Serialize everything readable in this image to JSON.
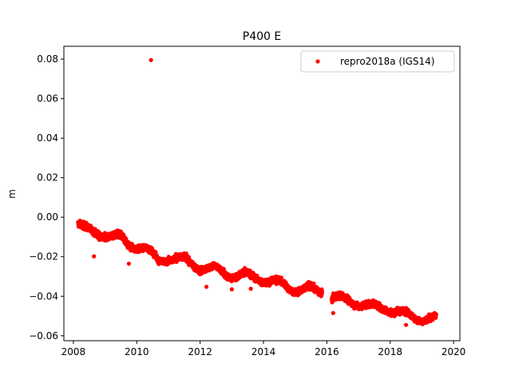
{
  "chart_data": {
    "type": "scatter",
    "title": "P400 E",
    "xlabel": "",
    "ylabel": "m",
    "xlim": [
      2007.7,
      2020.2
    ],
    "ylim": [
      -0.0625,
      0.0865
    ],
    "xticks": [
      2008,
      2010,
      2012,
      2014,
      2016,
      2018,
      2020
    ],
    "yticks": [
      -0.06,
      -0.04,
      -0.02,
      0.0,
      0.02,
      0.04,
      0.06,
      0.08
    ],
    "xtick_labels": [
      "2008",
      "2010",
      "2012",
      "2014",
      "2016",
      "2018",
      "2020"
    ],
    "ytick_labels": [
      "−0.06",
      "−0.04",
      "−0.02",
      "0.00",
      "0.02",
      "0.04",
      "0.06",
      "0.08"
    ],
    "grid": false,
    "legend_position": "top-right",
    "series": [
      {
        "name": "repro2018a (IGS14)",
        "color": "#ff0000",
        "marker": "circle",
        "trend": [
          [
            2008.15,
            -0.003
          ],
          [
            2008.5,
            -0.007
          ],
          [
            2009.0,
            -0.009
          ],
          [
            2009.5,
            -0.01
          ],
          [
            2009.7,
            -0.014
          ],
          [
            2010.0,
            -0.015
          ],
          [
            2010.3,
            -0.016
          ],
          [
            2010.7,
            -0.022
          ],
          [
            2011.0,
            -0.021
          ],
          [
            2011.5,
            -0.021
          ],
          [
            2012.0,
            -0.026
          ],
          [
            2012.5,
            -0.026
          ],
          [
            2013.0,
            -0.03
          ],
          [
            2013.5,
            -0.029
          ],
          [
            2014.0,
            -0.032
          ],
          [
            2014.5,
            -0.033
          ],
          [
            2015.0,
            -0.037
          ],
          [
            2015.5,
            -0.036
          ],
          [
            2015.85,
            -0.038
          ],
          [
            2016.15,
            -0.041
          ],
          [
            2016.5,
            -0.041
          ],
          [
            2017.0,
            -0.044
          ],
          [
            2017.5,
            -0.045
          ],
          [
            2018.0,
            -0.047
          ],
          [
            2018.5,
            -0.049
          ],
          [
            2019.0,
            -0.052
          ],
          [
            2019.45,
            -0.051
          ]
        ],
        "gaps": [
          [
            2015.85,
            2016.15
          ]
        ],
        "outliers": [
          [
            2010.45,
            0.0795
          ],
          [
            2008.65,
            -0.0198
          ],
          [
            2009.75,
            -0.0235
          ],
          [
            2012.2,
            -0.0352
          ],
          [
            2013.0,
            -0.0365
          ],
          [
            2013.6,
            -0.0362
          ],
          [
            2016.2,
            -0.0485
          ],
          [
            2018.5,
            -0.0545
          ]
        ]
      }
    ]
  }
}
